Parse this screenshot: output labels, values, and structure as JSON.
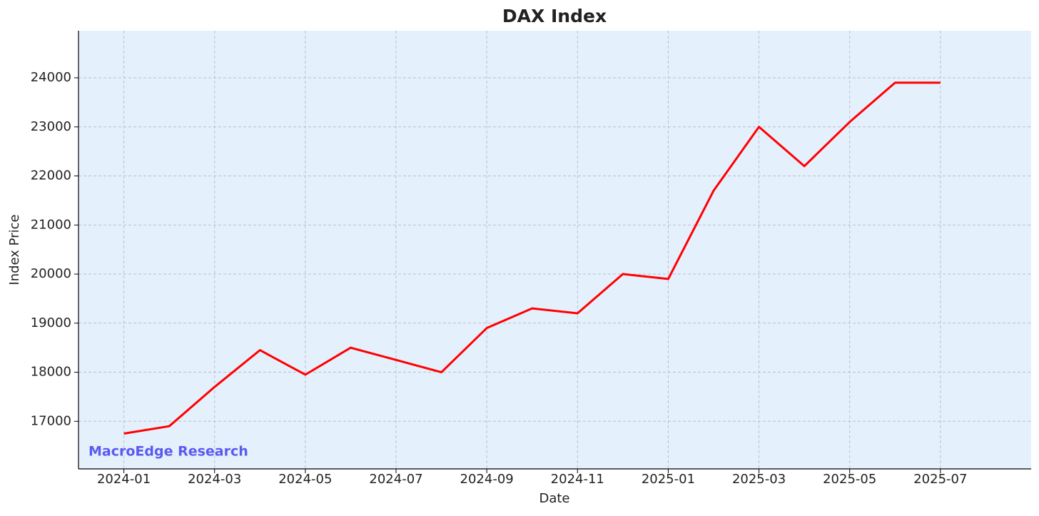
{
  "chart_data": {
    "type": "line",
    "title": "DAX Index",
    "x_label": "Date",
    "y_label": "Index Price",
    "watermark": "MacroEdge Research",
    "x": [
      "2024-01",
      "2024-02",
      "2024-03",
      "2024-04",
      "2024-05",
      "2024-06",
      "2024-07",
      "2024-08",
      "2024-09",
      "2024-10",
      "2024-11",
      "2024-12",
      "2025-01",
      "2025-02",
      "2025-03",
      "2025-04",
      "2025-05",
      "2025-06",
      "2025-07"
    ],
    "series": [
      {
        "name": "DAX",
        "color": "#ff0000",
        "values": [
          16750,
          16900,
          17700,
          18450,
          17950,
          18500,
          18250,
          18000,
          18900,
          19300,
          19200,
          20000,
          19900,
          21700,
          23000,
          22200,
          23100,
          23900,
          23900
        ]
      }
    ],
    "xlim": [
      "2023-12",
      "2025-09"
    ],
    "xticks": [
      "2024-01",
      "2024-03",
      "2024-05",
      "2024-07",
      "2024-09",
      "2024-11",
      "2025-01",
      "2025-03",
      "2025-05",
      "2025-07"
    ],
    "ylim": [
      16030,
      24960
    ],
    "yticks": [
      17000,
      18000,
      19000,
      20000,
      21000,
      22000,
      23000,
      24000
    ],
    "grid": true,
    "background": "#e5f0fd"
  }
}
